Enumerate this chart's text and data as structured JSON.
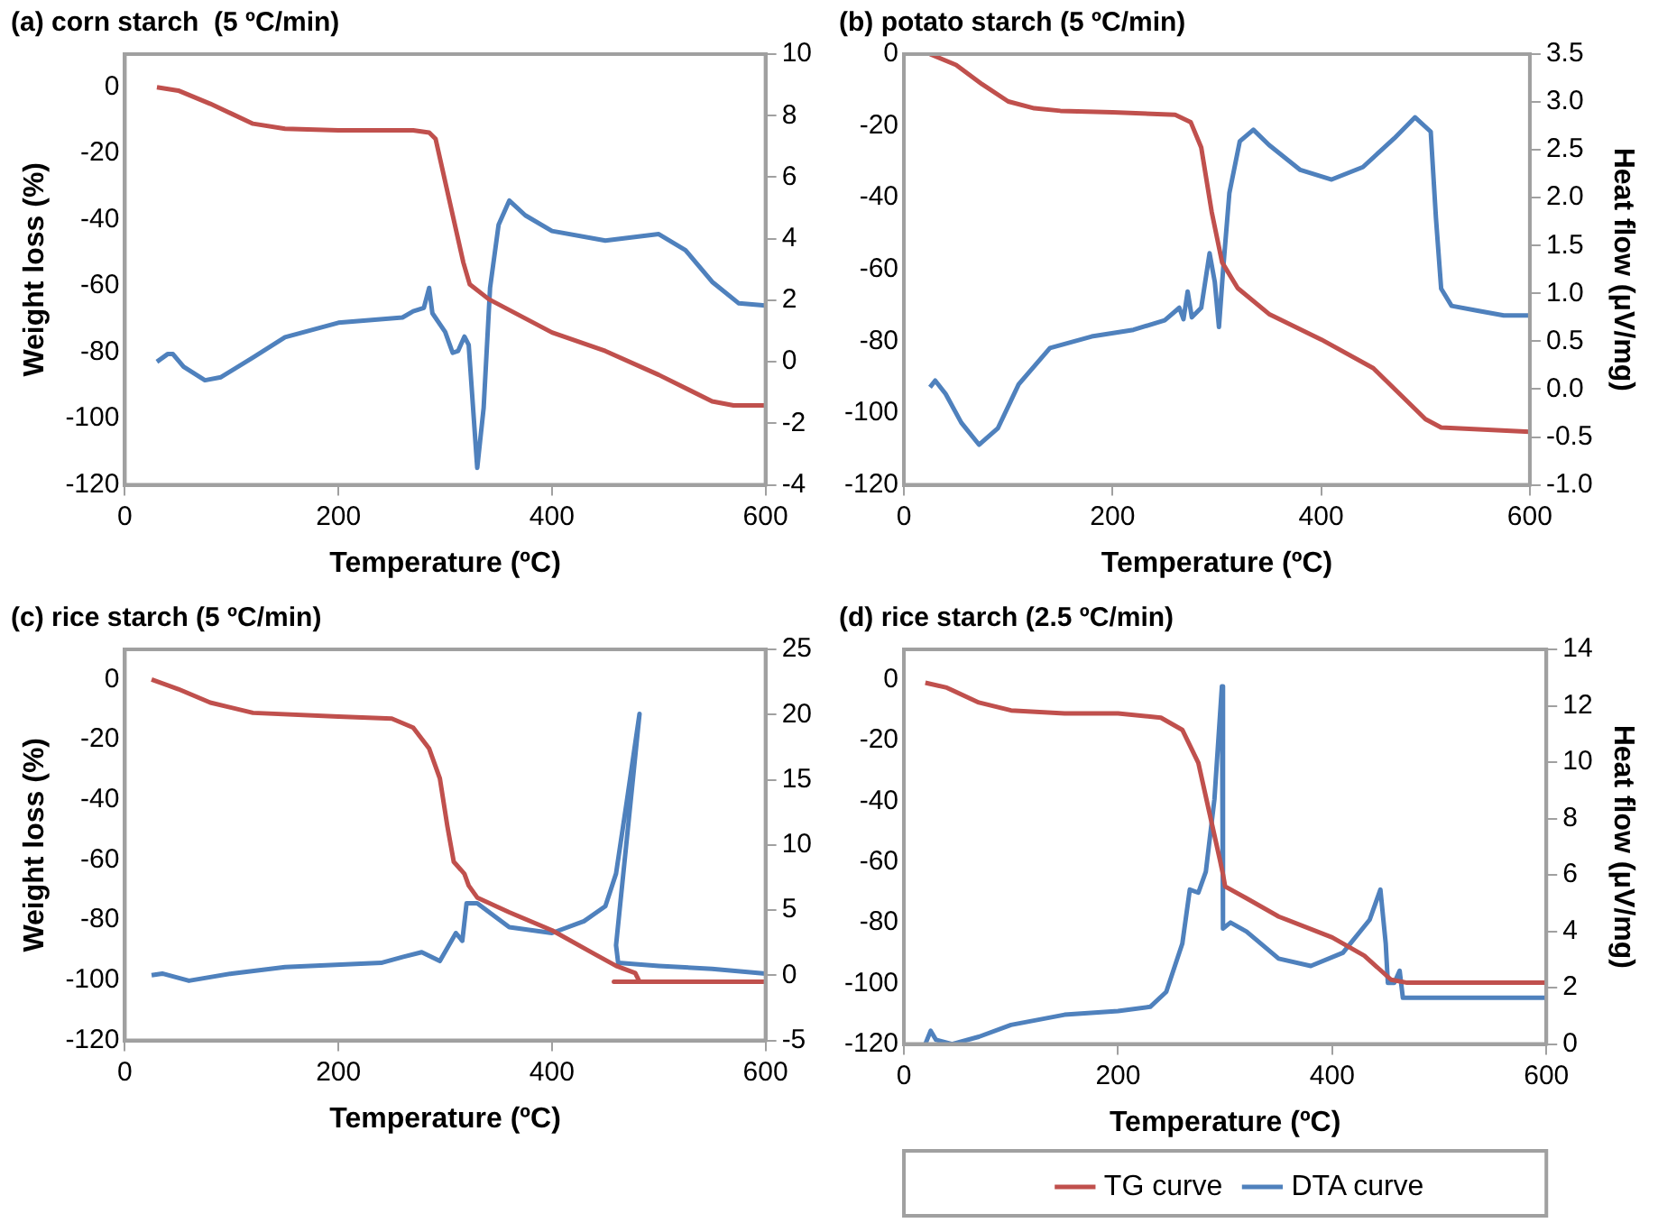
{
  "chart_data": [
    {
      "type": "line",
      "title": "(a) corn starch  (5 ºC/min)",
      "xlabel": "Temperature (ºC)",
      "ylabel": "Weight loss (%)",
      "xlim": [
        0,
        600
      ],
      "xticks": [
        0,
        200,
        400,
        600
      ],
      "ylim": [
        -120,
        10
      ],
      "yticks": [
        -120,
        -100,
        -80,
        -60,
        -40,
        -20,
        0
      ],
      "y2lim": [
        -4,
        10
      ],
      "y2ticks": [
        -4,
        -2,
        0,
        2,
        4,
        6,
        8,
        10
      ],
      "marker": "none",
      "series": [
        {
          "color": "#c0504d",
          "x": [
            30,
            50,
            80,
            100,
            120,
            150,
            200,
            270,
            285,
            291,
            305,
            317,
            323,
            341,
            400,
            450,
            500,
            550,
            570,
            600
          ],
          "values": [
            0,
            -1,
            -5,
            -8,
            -11,
            -12.5,
            -13,
            -13,
            -13.7,
            -15.6,
            -35.7,
            -52.9,
            -59.5,
            -64,
            -74,
            -79.6,
            -86.8,
            -94.8,
            -96,
            -96
          ]
        },
        {
          "color": "#4f81bd",
          "axis": "y2",
          "x": [
            30,
            40,
            45,
            55,
            75,
            90,
            120,
            150,
            200,
            260,
            270,
            280,
            285,
            288,
            300,
            307,
            312,
            318,
            322,
            330,
            336,
            342,
            350,
            360,
            375,
            400,
            450,
            500,
            525,
            550,
            575,
            600
          ],
          "values": [
            0,
            0.25,
            0.25,
            -0.16,
            -0.6,
            -0.5,
            0.14,
            0.8,
            1.27,
            1.44,
            1.64,
            1.75,
            2.4,
            1.58,
            0.97,
            0.29,
            0.35,
            0.82,
            0.55,
            -3.45,
            -1.5,
            2.4,
            4.45,
            5.24,
            4.76,
            4.25,
            3.94,
            4.15,
            3.63,
            2.6,
            1.9,
            1.83
          ]
        }
      ]
    },
    {
      "type": "line",
      "title": "(b) potato starch (5 ºC/min)",
      "xlabel": "Temperature (ºC)",
      "y2label": "Heat flow (μV/mg)",
      "xlim": [
        0,
        600
      ],
      "xticks": [
        0,
        200,
        400,
        600
      ],
      "ylim": [
        -120,
        0
      ],
      "yticks": [
        -120,
        -100,
        -80,
        -60,
        -40,
        -20,
        0
      ],
      "y2lim": [
        -1,
        3.5
      ],
      "y2ticks": [
        {
          "value": -1,
          "label": "-1.0"
        },
        {
          "value": -0.5,
          "label": "-0.5"
        },
        {
          "value": 0,
          "label": "0.0"
        },
        {
          "value": 0.5,
          "label": "0.5"
        },
        {
          "value": 1,
          "label": "1.0"
        },
        {
          "value": 1.5,
          "label": "1.5"
        },
        {
          "value": 2,
          "label": "2.0"
        },
        {
          "value": 2.5,
          "label": "2.5"
        },
        {
          "value": 3,
          "label": "3.0"
        },
        {
          "value": 3.5,
          "label": "3.5"
        }
      ],
      "marker": "none",
      "series": [
        {
          "color": "#c0504d",
          "x": [
            25,
            50,
            75,
            100,
            125,
            150,
            200,
            260,
            275,
            285,
            295,
            305,
            320,
            350,
            400,
            450,
            500,
            515,
            600
          ],
          "values": [
            0,
            -3,
            -8.4,
            -13.2,
            -15.1,
            -15.8,
            -16.2,
            -16.9,
            -19,
            -26,
            -43.9,
            -58,
            -65.2,
            -72.4,
            -79.5,
            -87.5,
            -101.7,
            -104,
            -105.2
          ]
        },
        {
          "color": "#4f81bd",
          "axis": "y2",
          "x": [
            25,
            30,
            40,
            55,
            72,
            90,
            110,
            140,
            180,
            220,
            250,
            264,
            268,
            272,
            276,
            285,
            293,
            298,
            302,
            306,
            312,
            322,
            335,
            350,
            380,
            410,
            440,
            470,
            490,
            505,
            510,
            515,
            525,
            550,
            575,
            600
          ],
          "values": [
            0.02,
            0.09,
            -0.05,
            -0.35,
            -0.58,
            -0.41,
            0.05,
            0.43,
            0.55,
            0.62,
            0.72,
            0.85,
            0.73,
            1.02,
            0.75,
            0.85,
            1.42,
            1.12,
            0.65,
            1.25,
            2.05,
            2.59,
            2.71,
            2.55,
            2.29,
            2.19,
            2.32,
            2.62,
            2.84,
            2.69,
            1.79,
            1.05,
            0.87,
            0.82,
            0.77,
            0.77
          ]
        }
      ]
    },
    {
      "type": "line",
      "title": "(c) rice starch (5 ºC/min)",
      "xlabel": "Temperature (ºC)",
      "ylabel": "Weight loss (%)",
      "xlim": [
        0,
        600
      ],
      "xticks": [
        0,
        200,
        400,
        600
      ],
      "ylim": [
        -120,
        10
      ],
      "yticks": [
        -120,
        -100,
        -80,
        -60,
        -40,
        -20,
        0
      ],
      "y2lim": [
        -5,
        25
      ],
      "y2ticks": [
        -5,
        0,
        5,
        10,
        15,
        20,
        25
      ],
      "marker": "none",
      "series": [
        {
          "color": "#c0504d",
          "x": [
            25,
            50,
            80,
            120,
            200,
            250,
            270,
            285,
            295,
            302,
            308,
            318,
            322,
            330,
            360,
            400,
            440,
            460,
            478,
            482,
            458,
            600
          ],
          "values": [
            0,
            -3.2,
            -7.7,
            -11.1,
            -12.3,
            -13,
            -16,
            -23,
            -32.9,
            -48.7,
            -60.6,
            -64.6,
            -68.5,
            -72.5,
            -77.4,
            -83.4,
            -91.3,
            -95.2,
            -97.6,
            -100.5,
            -100.5,
            -100.5
          ]
        },
        {
          "color": "#4f81bd",
          "axis": "y2",
          "x": [
            25,
            35,
            60,
            100,
            150,
            240,
            260,
            278,
            295,
            310,
            316,
            320,
            330,
            360,
            400,
            430,
            450,
            460,
            470,
            482,
            460,
            462,
            500,
            550,
            600
          ],
          "values": [
            0,
            0.13,
            -0.42,
            0.13,
            0.63,
            0.95,
            1.4,
            1.77,
            1.09,
            3.24,
            2.64,
            5.52,
            5.52,
            3.69,
            3.24,
            4.15,
            5.3,
            7.8,
            13.3,
            20.06,
            2.3,
            0.95,
            0.72,
            0.49,
            0.13
          ]
        }
      ]
    },
    {
      "type": "line",
      "title": "(d) rice starch (2.5 ºC/min)",
      "xlabel": "Temperature (ºC)",
      "y2label": "Heat flow (μV/mg)",
      "xlim": [
        0,
        600
      ],
      "xticks": [
        0,
        200,
        400,
        600
      ],
      "ylim": [
        -120,
        10
      ],
      "yticks": [
        -120,
        -100,
        -80,
        -60,
        -40,
        -20,
        0
      ],
      "y2lim": [
        0,
        14
      ],
      "y2ticks": [
        0,
        2,
        4,
        6,
        8,
        10,
        12,
        14
      ],
      "marker": "none",
      "legend": "bottom",
      "series": [
        {
          "name": "TG curve",
          "color": "#c0504d",
          "x": [
            20,
            40,
            70,
            100,
            150,
            200,
            240,
            260,
            275,
            285,
            295,
            298,
            300,
            320,
            350,
            400,
            430,
            455,
            470,
            600
          ],
          "values": [
            -1,
            -2.6,
            -7.5,
            -10.1,
            -11.1,
            -11.1,
            -12.5,
            -16.5,
            -27.4,
            -43.3,
            -59.1,
            -64.1,
            -68.1,
            -72,
            -78,
            -84.9,
            -90.9,
            -98.8,
            -99.8,
            -99.8
          ]
        },
        {
          "name": "DTA curve",
          "color": "#4f81bd",
          "axis": "y2",
          "x": [
            20,
            25,
            30,
            45,
            70,
            100,
            150,
            200,
            230,
            245,
            260,
            267,
            275,
            282,
            290,
            297,
            298,
            305,
            320,
            350,
            380,
            410,
            435,
            445,
            450,
            452,
            458,
            463,
            466,
            500,
            600
          ],
          "values": [
            0,
            0.47,
            0.15,
            0,
            0.26,
            0.68,
            1.04,
            1.17,
            1.32,
            1.85,
            3.56,
            5.48,
            5.37,
            6.12,
            8.68,
            12.69,
            4.1,
            4.31,
            3.99,
            3.03,
            2.77,
            3.24,
            4.41,
            5.48,
            3.56,
            2.17,
            2.17,
            2.6,
            1.64,
            1.64,
            1.64
          ]
        }
      ]
    }
  ]
}
